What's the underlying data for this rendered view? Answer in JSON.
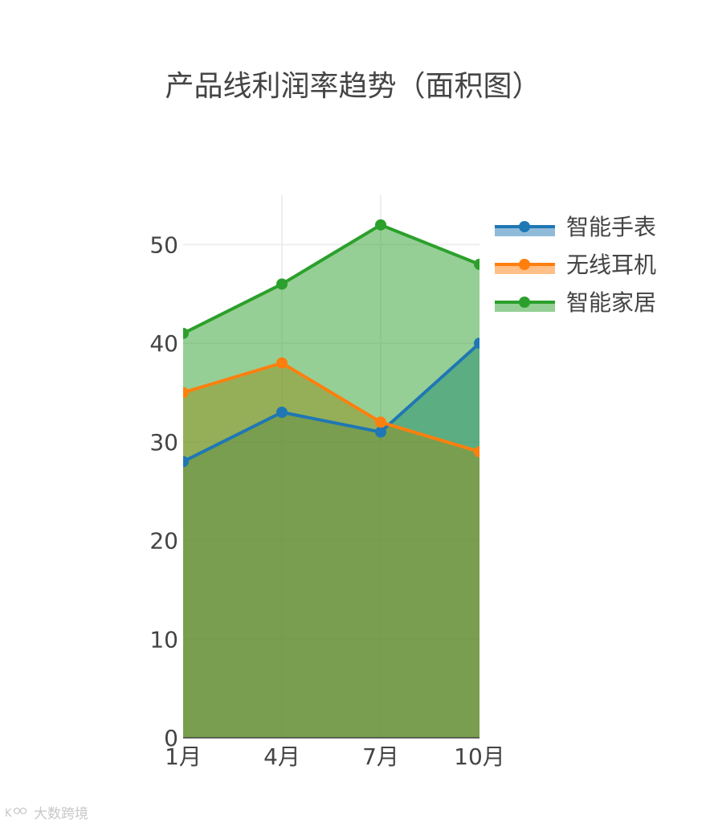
{
  "chart_data": {
    "type": "area",
    "title": "产品线利润率趋势（面积图）",
    "xlabel": "",
    "ylabel": "",
    "categories": [
      "1月",
      "4月",
      "7月",
      "10月"
    ],
    "ylim": [
      0,
      55
    ],
    "yticks": [
      0,
      10,
      20,
      30,
      40,
      50
    ],
    "grid": true,
    "legend_position": "top-right",
    "series": [
      {
        "name": "智能手表",
        "values": [
          28,
          33,
          31,
          40
        ],
        "color": "#1f77b4"
      },
      {
        "name": "无线耳机",
        "values": [
          35,
          38,
          32,
          29
        ],
        "color": "#ff7f0e"
      },
      {
        "name": "智能家居",
        "values": [
          41,
          46,
          52,
          48
        ],
        "color": "#2ca02c"
      }
    ]
  },
  "watermark": {
    "text": "大数跨境",
    "icon": "kc-logo-icon"
  }
}
